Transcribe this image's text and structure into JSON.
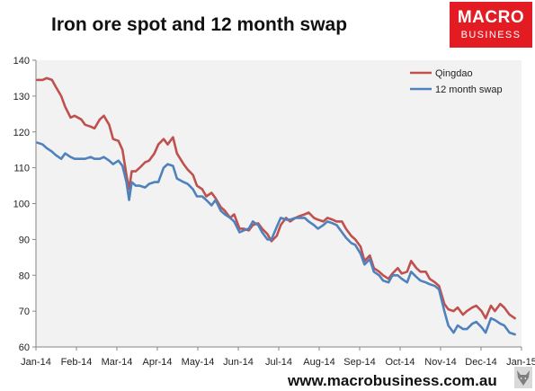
{
  "header": {
    "title": "Iron ore spot and 12 month swap"
  },
  "logo": {
    "line1": "MACRO",
    "line2": "BUSINESS",
    "background_color": "#e31b23"
  },
  "footer": {
    "url": "www.macrobusiness.com.au",
    "icon": "wolf-icon"
  },
  "chart_data": {
    "type": "line",
    "title": "Iron ore spot and 12 month swap",
    "xlabel": "",
    "ylabel": "",
    "ylim": [
      60,
      140
    ],
    "y_ticks": [
      60,
      70,
      80,
      90,
      100,
      110,
      120,
      130,
      140
    ],
    "x_ticks": [
      "Jan-14",
      "Feb-14",
      "Mar-14",
      "Apr-14",
      "May-14",
      "Jun-14",
      "Jul-14",
      "Aug-14",
      "Sep-14",
      "Oct-14",
      "Nov-14",
      "Dec-14",
      "Jan-15"
    ],
    "grid": false,
    "legend_position": "top-right",
    "plot_background": "#f2f2f2",
    "series": [
      {
        "name": "Qingdao",
        "color": "#c0504d",
        "x": [
          "2014-01-02",
          "2014-01-06",
          "2014-01-09",
          "2014-01-13",
          "2014-01-16",
          "2014-01-20",
          "2014-01-23",
          "2014-01-27",
          "2014-01-30",
          "2014-02-04",
          "2014-02-07",
          "2014-02-11",
          "2014-02-14",
          "2014-02-18",
          "2014-02-21",
          "2014-02-25",
          "2014-02-28",
          "2014-03-04",
          "2014-03-07",
          "2014-03-10",
          "2014-03-12",
          "2014-03-14",
          "2014-03-17",
          "2014-03-20",
          "2014-03-24",
          "2014-03-27",
          "2014-03-31",
          "2014-04-03",
          "2014-04-07",
          "2014-04-10",
          "2014-04-14",
          "2014-04-17",
          "2014-04-22",
          "2014-04-25",
          "2014-04-29",
          "2014-05-02",
          "2014-05-06",
          "2014-05-09",
          "2014-05-13",
          "2014-05-16",
          "2014-05-20",
          "2014-05-23",
          "2014-05-27",
          "2014-05-30",
          "2014-06-03",
          "2014-06-06",
          "2014-06-10",
          "2014-06-13",
          "2014-06-17",
          "2014-06-20",
          "2014-06-24",
          "2014-06-27",
          "2014-07-01",
          "2014-07-04",
          "2014-07-08",
          "2014-07-11",
          "2014-07-15",
          "2014-07-18",
          "2014-07-22",
          "2014-07-25",
          "2014-07-29",
          "2014-08-01",
          "2014-08-05",
          "2014-08-08",
          "2014-08-12",
          "2014-08-15",
          "2014-08-19",
          "2014-08-22",
          "2014-08-26",
          "2014-08-29",
          "2014-09-02",
          "2014-09-05",
          "2014-09-09",
          "2014-09-12",
          "2014-09-16",
          "2014-09-19",
          "2014-09-23",
          "2014-09-26",
          "2014-09-30",
          "2014-10-03",
          "2014-10-07",
          "2014-10-10",
          "2014-10-14",
          "2014-10-17",
          "2014-10-21",
          "2014-10-24",
          "2014-10-28",
          "2014-10-31",
          "2014-11-04",
          "2014-11-07",
          "2014-11-11",
          "2014-11-14",
          "2014-11-18",
          "2014-11-21",
          "2014-11-25",
          "2014-11-28",
          "2014-12-02",
          "2014-12-05",
          "2014-12-09",
          "2014-12-12",
          "2014-12-16",
          "2014-12-19",
          "2014-12-23",
          "2014-12-27"
        ],
        "values": [
          134.5,
          134.5,
          135,
          134.5,
          132.5,
          130,
          127,
          124,
          124.5,
          123.5,
          122,
          121.5,
          121,
          123.5,
          124.5,
          122,
          118,
          117.5,
          115,
          108,
          104,
          109,
          109,
          110,
          111.5,
          112,
          114,
          116.5,
          118,
          116.5,
          118.5,
          114,
          111,
          109.5,
          108,
          105,
          104,
          102,
          103,
          101.5,
          99,
          98,
          96,
          97,
          93,
          93,
          92.5,
          94,
          94.5,
          93,
          91.5,
          89.5,
          91,
          94,
          96,
          95,
          96,
          96.5,
          97,
          97.5,
          96,
          95.5,
          95,
          96,
          95.5,
          95,
          95,
          93,
          91,
          90,
          88,
          84,
          85.5,
          82,
          81,
          80,
          79,
          80.5,
          82,
          80.5,
          81,
          84,
          82,
          81,
          81,
          79,
          78,
          77,
          72,
          70.5,
          70,
          71,
          69,
          70,
          71,
          71.5,
          70,
          68,
          71.5,
          70,
          72,
          71,
          69,
          68
        ]
      },
      {
        "name": "12 month swap",
        "color": "#4f81bd",
        "x": [
          "2014-01-02",
          "2014-01-06",
          "2014-01-09",
          "2014-01-13",
          "2014-01-16",
          "2014-01-20",
          "2014-01-23",
          "2014-01-27",
          "2014-01-30",
          "2014-02-04",
          "2014-02-07",
          "2014-02-11",
          "2014-02-14",
          "2014-02-18",
          "2014-02-21",
          "2014-02-25",
          "2014-02-28",
          "2014-03-04",
          "2014-03-07",
          "2014-03-10",
          "2014-03-12",
          "2014-03-14",
          "2014-03-17",
          "2014-03-20",
          "2014-03-24",
          "2014-03-27",
          "2014-03-31",
          "2014-04-03",
          "2014-04-07",
          "2014-04-10",
          "2014-04-14",
          "2014-04-17",
          "2014-04-22",
          "2014-04-25",
          "2014-04-29",
          "2014-05-02",
          "2014-05-06",
          "2014-05-09",
          "2014-05-13",
          "2014-05-16",
          "2014-05-20",
          "2014-05-23",
          "2014-05-27",
          "2014-05-30",
          "2014-06-03",
          "2014-06-06",
          "2014-06-10",
          "2014-06-13",
          "2014-06-17",
          "2014-06-20",
          "2014-06-24",
          "2014-06-27",
          "2014-07-01",
          "2014-07-04",
          "2014-07-08",
          "2014-07-11",
          "2014-07-15",
          "2014-07-18",
          "2014-07-22",
          "2014-07-25",
          "2014-07-29",
          "2014-08-01",
          "2014-08-05",
          "2014-08-08",
          "2014-08-12",
          "2014-08-15",
          "2014-08-19",
          "2014-08-22",
          "2014-08-26",
          "2014-08-29",
          "2014-09-02",
          "2014-09-05",
          "2014-09-09",
          "2014-09-12",
          "2014-09-16",
          "2014-09-19",
          "2014-09-23",
          "2014-09-26",
          "2014-09-30",
          "2014-10-03",
          "2014-10-07",
          "2014-10-10",
          "2014-10-14",
          "2014-10-17",
          "2014-10-21",
          "2014-10-24",
          "2014-10-28",
          "2014-10-31",
          "2014-11-04",
          "2014-11-07",
          "2014-11-11",
          "2014-11-14",
          "2014-11-18",
          "2014-11-21",
          "2014-11-25",
          "2014-11-28",
          "2014-12-02",
          "2014-12-05",
          "2014-12-09",
          "2014-12-12",
          "2014-12-16",
          "2014-12-19",
          "2014-12-23",
          "2014-12-27"
        ],
        "values": [
          117,
          116.5,
          115.5,
          114.5,
          113.5,
          112.5,
          114,
          113,
          112.5,
          112.5,
          112.5,
          113,
          112.5,
          112.5,
          113,
          112,
          111,
          112,
          110.5,
          106,
          101,
          106,
          105,
          105,
          104.5,
          105.5,
          106,
          106,
          110,
          111,
          110.5,
          107,
          106,
          105.5,
          104,
          102,
          102,
          101,
          99.5,
          101,
          98,
          97,
          96,
          95,
          92,
          92.5,
          93,
          95,
          94,
          92,
          90,
          90,
          93.5,
          96,
          95.5,
          95.5,
          96,
          96,
          96,
          95,
          94,
          93,
          94,
          95,
          94.5,
          94,
          92,
          90.5,
          89,
          88.5,
          86,
          83,
          84.5,
          81,
          80,
          78.5,
          78,
          80,
          80,
          79,
          78,
          81,
          79.5,
          78.5,
          78,
          77.5,
          77,
          76,
          70,
          66,
          64,
          66,
          65,
          65,
          66.5,
          67,
          65.5,
          64,
          68,
          67.5,
          66.5,
          66,
          64,
          63.5
        ]
      }
    ]
  }
}
